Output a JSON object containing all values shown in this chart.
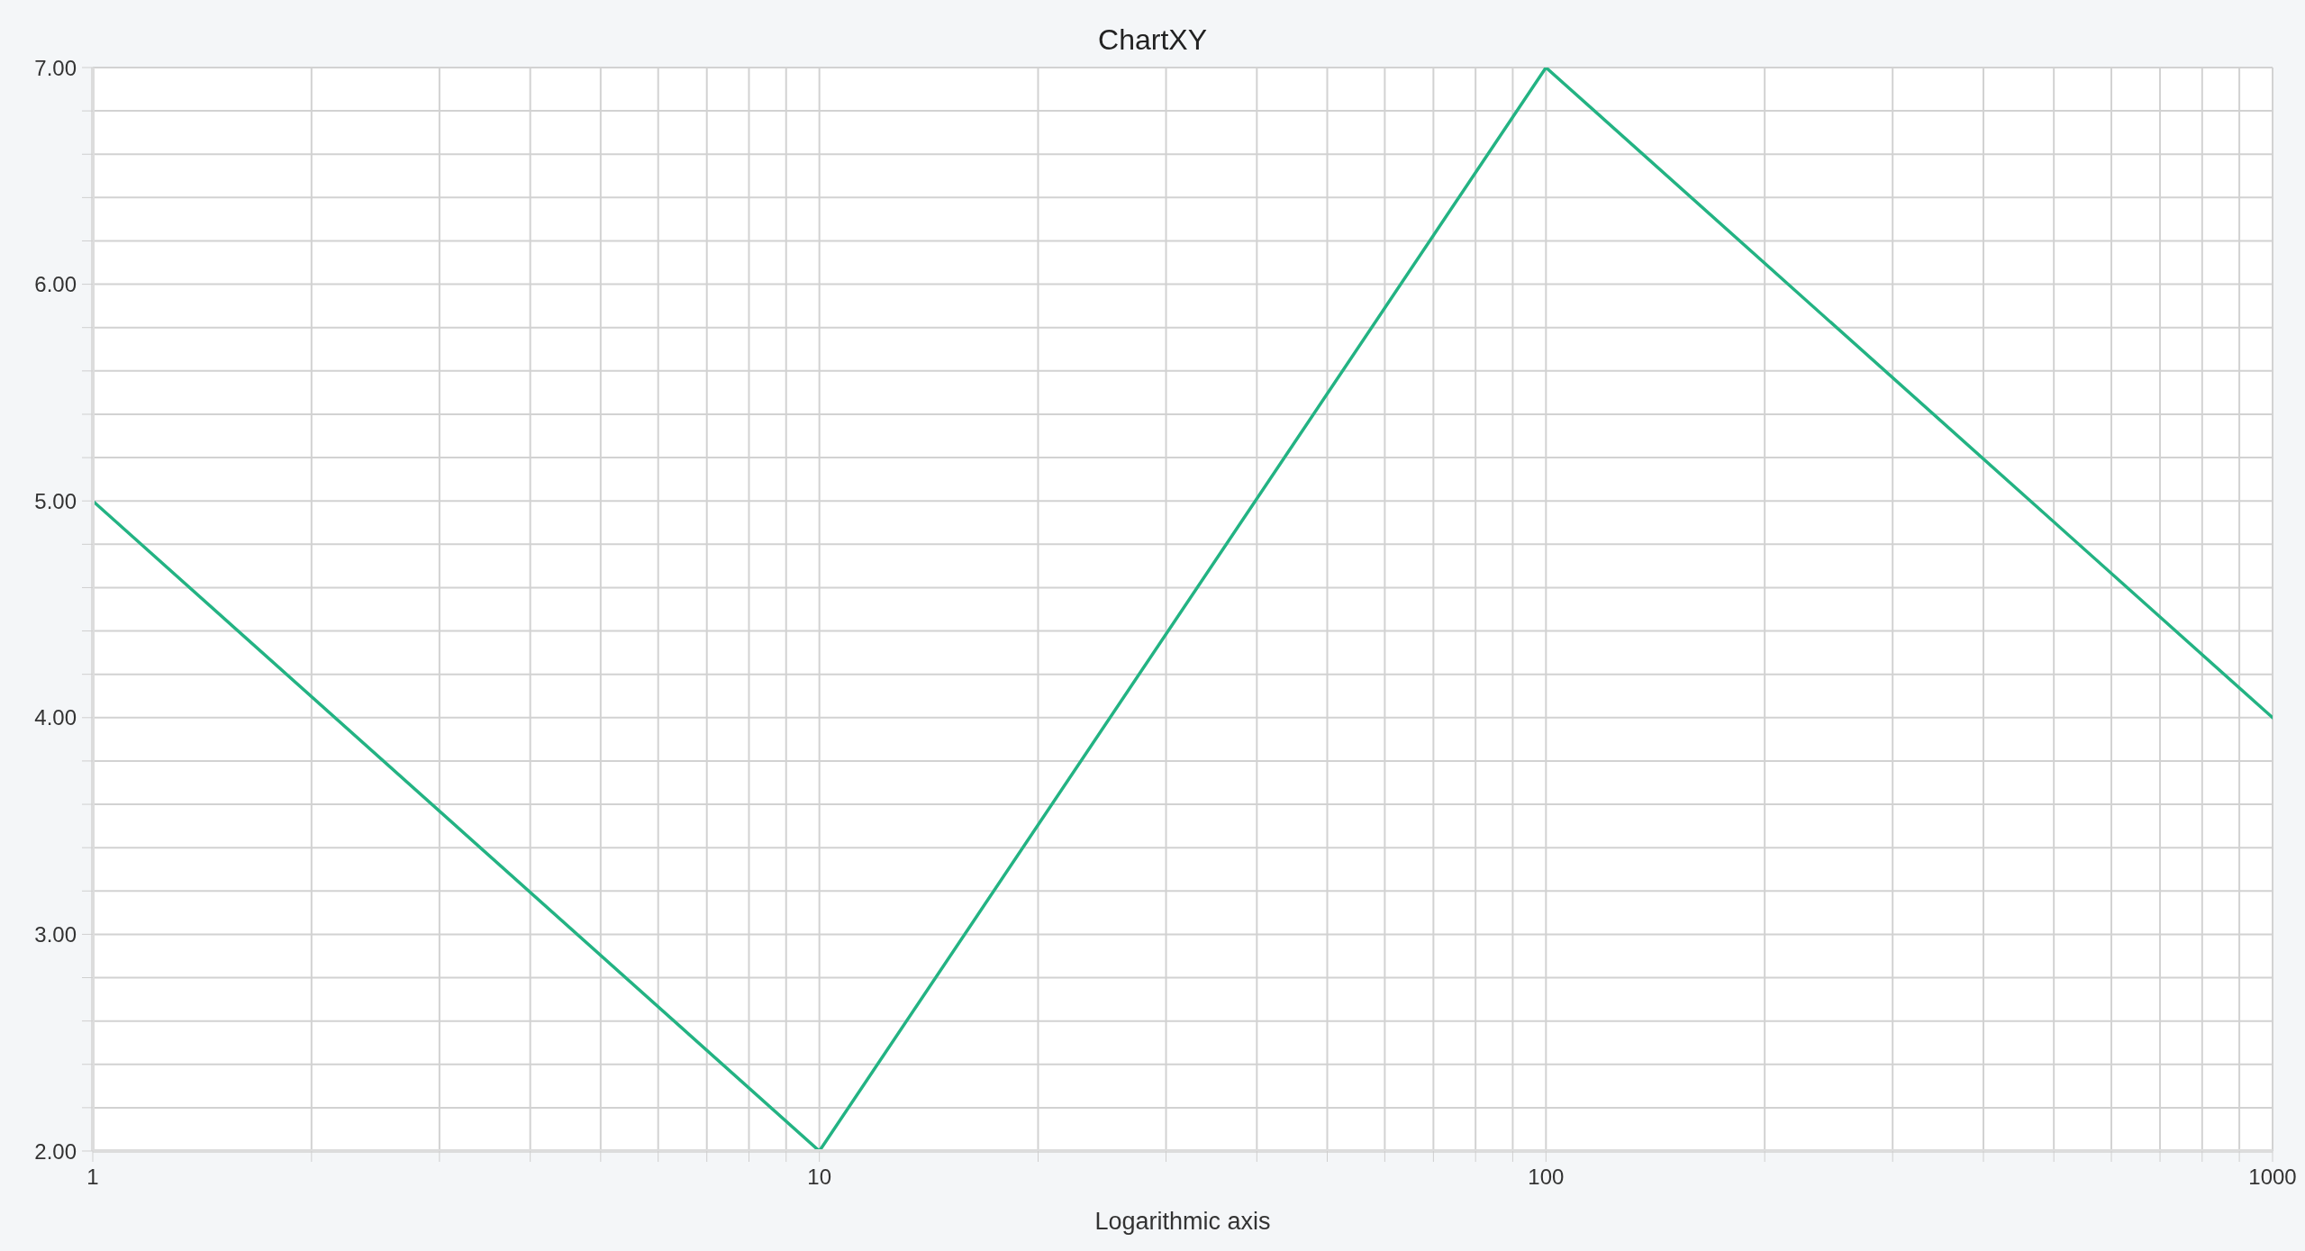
{
  "chart_data": {
    "type": "line",
    "title": "ChartXY",
    "xlabel": "Logarithmic axis",
    "x": [
      1,
      10,
      100,
      1000
    ],
    "values": [
      5,
      2,
      7,
      4
    ],
    "color": "#23b383",
    "log": "x",
    "xlim": [
      1,
      1000
    ],
    "xticks": [
      1,
      {
        "value": 2,
        "label": null
      },
      {
        "value": 3,
        "label": null
      },
      {
        "value": 4,
        "label": null
      },
      {
        "value": 5,
        "label": null
      },
      {
        "value": 6,
        "label": null
      },
      {
        "value": 7,
        "label": null
      },
      {
        "value": 8,
        "label": null
      },
      {
        "value": 9,
        "label": null
      },
      10,
      {
        "value": 20,
        "label": null
      },
      {
        "value": 30,
        "label": null
      },
      {
        "value": 40,
        "label": null
      },
      {
        "value": 50,
        "label": null
      },
      {
        "value": 60,
        "label": null
      },
      {
        "value": 70,
        "label": null
      },
      {
        "value": 80,
        "label": null
      },
      {
        "value": 90,
        "label": null
      },
      100,
      {
        "value": 200,
        "label": null
      },
      {
        "value": 300,
        "label": null
      },
      {
        "value": 400,
        "label": null
      },
      {
        "value": 500,
        "label": null
      },
      {
        "value": 600,
        "label": null
      },
      {
        "value": 700,
        "label": null
      },
      {
        "value": 800,
        "label": null
      },
      {
        "value": 900,
        "label": null
      },
      1000
    ],
    "ylim": [
      2,
      7
    ],
    "yticks": [
      {
        "value": 2,
        "label": "2.00"
      },
      {
        "value": 2.2,
        "label": null
      },
      {
        "value": 2.4,
        "label": null
      },
      {
        "value": 2.6,
        "label": null
      },
      {
        "value": 2.8,
        "label": null
      },
      {
        "value": 3,
        "label": "3.00"
      },
      {
        "value": 3.2,
        "label": null
      },
      {
        "value": 3.4,
        "label": null
      },
      {
        "value": 3.6,
        "label": null
      },
      {
        "value": 3.8,
        "label": null
      },
      {
        "value": 4,
        "label": "4.00"
      },
      {
        "value": 4.2,
        "label": null
      },
      {
        "value": 4.4,
        "label": null
      },
      {
        "value": 4.6,
        "label": null
      },
      {
        "value": 4.8,
        "label": null
      },
      {
        "value": 5,
        "label": "5.00"
      },
      {
        "value": 5.2,
        "label": null
      },
      {
        "value": 5.4,
        "label": null
      },
      {
        "value": 5.6,
        "label": null
      },
      {
        "value": 5.8,
        "label": null
      },
      {
        "value": 6,
        "label": "6.00"
      },
      {
        "value": 6.2,
        "label": null
      },
      {
        "value": 6.4,
        "label": null
      },
      {
        "value": 6.6,
        "label": null
      },
      {
        "value": 6.8,
        "label": null
      },
      {
        "value": 7,
        "label": "7.00"
      }
    ],
    "grid": true
  }
}
